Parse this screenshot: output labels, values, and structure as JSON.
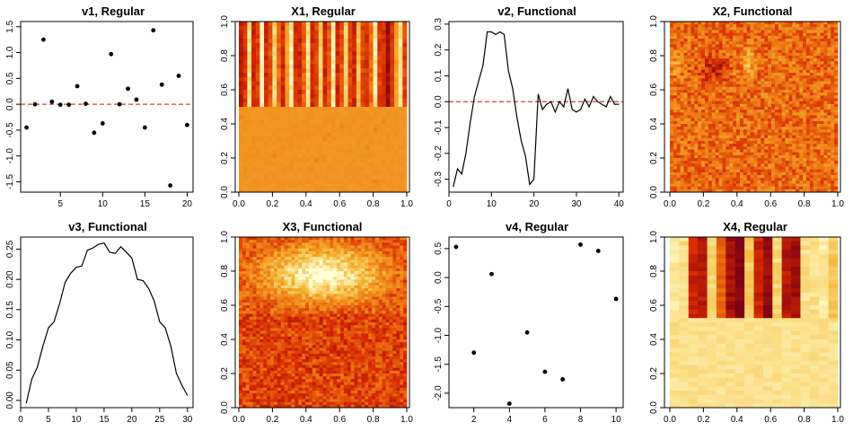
{
  "chart_data": [
    {
      "id": "v1",
      "title": "v1, Regular",
      "type": "scatter",
      "x": [
        1,
        2,
        3,
        4,
        5,
        6,
        7,
        8,
        9,
        10,
        11,
        12,
        13,
        14,
        15,
        16,
        17,
        18,
        19,
        20
      ],
      "y": [
        -0.45,
        0.0,
        1.25,
        0.05,
        -0.01,
        -0.01,
        0.35,
        0.01,
        -0.55,
        -0.37,
        0.97,
        0.0,
        0.3,
        0.09,
        -0.45,
        1.43,
        0.38,
        -1.57,
        0.55,
        -0.4
      ],
      "xlim": [
        0.3,
        20.7
      ],
      "ylim": [
        -1.7,
        1.6
      ],
      "xticks": [
        5,
        10,
        15,
        20
      ],
      "xticklabels": [
        "5",
        "10",
        "15",
        "20"
      ],
      "yticks": [
        -1.5,
        -1.0,
        -0.5,
        0.0,
        0.5,
        1.0,
        1.5
      ],
      "yticklabels": [
        "-1.5",
        "-1.0",
        "-0.5",
        "0.0",
        "0.5",
        "1.0",
        "1.5"
      ],
      "hline": 0.0,
      "hline_color": "#e0363c"
    },
    {
      "id": "X1",
      "title": "X1, Regular",
      "type": "heatmap",
      "xticklabels": [
        "0.0",
        "0.2",
        "0.4",
        "0.6",
        "0.8",
        "1.0"
      ],
      "yticklabels": [
        "0.0",
        "0.2",
        "0.4",
        "0.6",
        "0.8",
        "1.0"
      ],
      "pattern": "bands-top",
      "seed": 11,
      "band_intensity": [
        0.05,
        0.15,
        0.85,
        0.1,
        0.2,
        0.95,
        0.1,
        0.25,
        0.8,
        0.35,
        0.1,
        0.55,
        0.9,
        0.15,
        0.1,
        0.3,
        0.85,
        0.1,
        0.2,
        0.75,
        0.1,
        0.3,
        0.9,
        0.1,
        0.25,
        0.8,
        0.2,
        0.1,
        0.7,
        0.2,
        0.15,
        0.35,
        0.9,
        0.2,
        0.45,
        0.95,
        0.3,
        0.55,
        0.85,
        0.2
      ]
    },
    {
      "id": "v2",
      "title": "v2, Functional",
      "type": "line",
      "x": [
        1,
        2,
        3,
        4,
        5,
        6,
        7,
        8,
        9,
        10,
        11,
        12,
        13,
        14,
        15,
        16,
        17,
        18,
        19,
        20,
        21,
        22,
        23,
        24,
        25,
        26,
        27,
        28,
        29,
        30,
        31,
        32,
        33,
        34,
        35,
        36,
        37,
        38,
        39,
        40
      ],
      "y": [
        -0.33,
        -0.26,
        -0.28,
        -0.2,
        -0.08,
        0.02,
        0.08,
        0.14,
        0.27,
        0.27,
        0.26,
        0.27,
        0.26,
        0.12,
        0.05,
        -0.06,
        -0.15,
        -0.21,
        -0.32,
        -0.3,
        0.03,
        -0.03,
        -0.01,
        0.0,
        -0.04,
        0.0,
        -0.02,
        0.05,
        -0.03,
        -0.04,
        -0.03,
        0.01,
        -0.02,
        0.02,
        0.0,
        -0.01,
        -0.02,
        0.02,
        -0.01,
        -0.01
      ],
      "xlim": [
        0,
        41
      ],
      "ylim": [
        -0.35,
        0.31
      ],
      "xticks": [
        0,
        10,
        20,
        30,
        40
      ],
      "xticklabels": [
        "0",
        "10",
        "20",
        "30",
        "40"
      ],
      "yticks": [
        -0.3,
        -0.2,
        -0.1,
        0.0,
        0.1,
        0.2,
        0.3
      ],
      "yticklabels": [
        "-0.3",
        "-0.2",
        "-0.1",
        "0.0",
        "0.1",
        "0.2",
        "0.3"
      ],
      "hline": 0.0,
      "hline_color": "#e0363c"
    },
    {
      "id": "X2",
      "title": "X2, Functional",
      "type": "heatmap",
      "xticklabels": [
        "0.0",
        "0.2",
        "0.4",
        "0.6",
        "0.8",
        "1.0"
      ],
      "yticklabels": [
        "0.0",
        "0.2",
        "0.4",
        "0.6",
        "0.8",
        "1.0"
      ],
      "pattern": "noise-blobs",
      "seed": 23
    },
    {
      "id": "v3",
      "title": "v3, Functional",
      "type": "line",
      "x": [
        1,
        2,
        3,
        4,
        5,
        6,
        7,
        8,
        9,
        10,
        11,
        12,
        13,
        14,
        15,
        16,
        17,
        18,
        19,
        20,
        21,
        22,
        23,
        24,
        25,
        26,
        27,
        28,
        29,
        30
      ],
      "y": [
        -0.005,
        0.035,
        0.055,
        0.09,
        0.12,
        0.13,
        0.16,
        0.195,
        0.21,
        0.22,
        0.222,
        0.248,
        0.252,
        0.258,
        0.26,
        0.245,
        0.243,
        0.254,
        0.245,
        0.235,
        0.2,
        0.198,
        0.185,
        0.165,
        0.13,
        0.12,
        0.09,
        0.045,
        0.025,
        0.008
      ],
      "xlim": [
        0,
        31
      ],
      "ylim": [
        -0.012,
        0.27
      ],
      "xticks": [
        0,
        5,
        10,
        15,
        20,
        25,
        30
      ],
      "xticklabels": [
        "0",
        "5",
        "10",
        "15",
        "20",
        "25",
        "30"
      ],
      "yticks": [
        0.0,
        0.05,
        0.1,
        0.15,
        0.2,
        0.25
      ],
      "yticklabels": [
        "0.00",
        "0.05",
        "0.10",
        "0.15",
        "0.20",
        "0.25"
      ]
    },
    {
      "id": "X3",
      "title": "X3, Functional",
      "type": "heatmap",
      "xticklabels": [
        "0.0",
        "0.2",
        "0.4",
        "0.6",
        "0.8",
        "1.0"
      ],
      "yticklabels": [
        "0.0",
        "0.2",
        "0.4",
        "0.6",
        "0.8",
        "1.0"
      ],
      "pattern": "noise-oval",
      "seed": 37
    },
    {
      "id": "v4",
      "title": "v4, Regular",
      "type": "scatter",
      "x": [
        1,
        2,
        3,
        4,
        5,
        6,
        7,
        8,
        9,
        10
      ],
      "y": [
        0.53,
        -1.3,
        0.06,
        -2.18,
        -0.95,
        -1.63,
        -1.76,
        0.57,
        0.46,
        -0.37
      ],
      "xlim": [
        0.6,
        10.4
      ],
      "ylim": [
        -2.25,
        0.7
      ],
      "xticks": [
        2,
        4,
        6,
        8,
        10
      ],
      "xticklabels": [
        "2",
        "4",
        "6",
        "8",
        "10"
      ],
      "yticks": [
        -2.0,
        -1.5,
        -1.0,
        -0.5,
        0.0,
        0.5
      ],
      "yticklabels": [
        "-2.0",
        "-1.5",
        "-1.0",
        "-0.5",
        "0.0",
        "0.5"
      ]
    },
    {
      "id": "X4",
      "title": "X4, Regular",
      "type": "heatmap",
      "xticklabels": [
        "0.0",
        "0.2",
        "0.4",
        "0.6",
        "0.8",
        "1.0"
      ],
      "yticklabels": [
        "0.0",
        "0.2",
        "0.4",
        "0.6",
        "0.8",
        "1.0"
      ],
      "pattern": "blocks-top",
      "seed": 41,
      "block_intensity": [
        0.05,
        0.1,
        0.8,
        0.85,
        0.15,
        0.6,
        0.9,
        1.0,
        0.2,
        0.8,
        0.95,
        0.15,
        0.85,
        0.9,
        0.1,
        0.1,
        0.05,
        0.2
      ]
    }
  ]
}
